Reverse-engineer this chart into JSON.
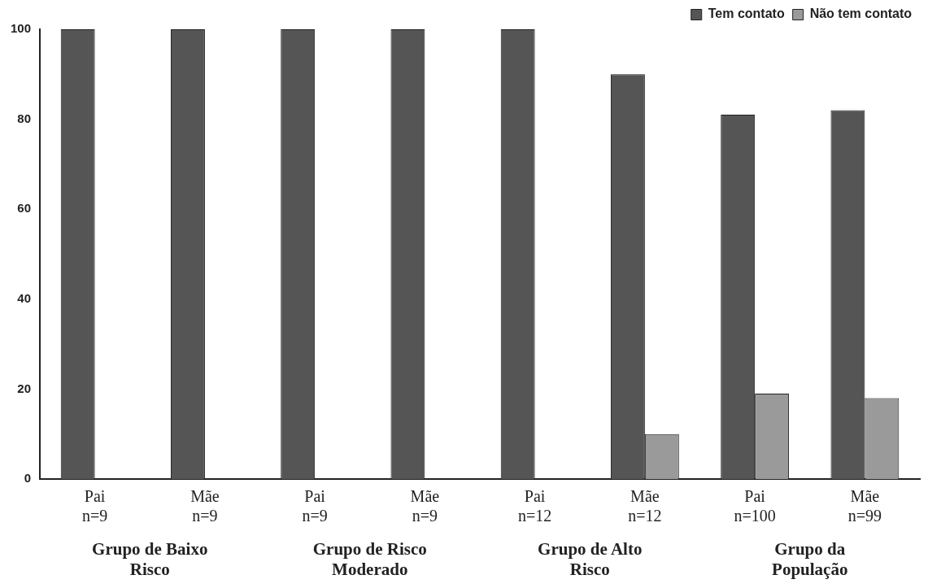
{
  "chart_data": {
    "type": "bar",
    "categories": [
      "Pai\nn=9",
      "Mãe\nn=9",
      "Pai\nn=9",
      "Mãe\nn=9",
      "Pai\nn=12",
      "Mãe\nn=12",
      "Pai\nn=100",
      "Mãe\nn=99"
    ],
    "series": [
      {
        "name": "Tem contato",
        "color": "#555555",
        "values": [
          100,
          100,
          100,
          100,
          100,
          90,
          81,
          82
        ]
      },
      {
        "name": "Não tem contato",
        "color": "#9a9a9a",
        "values": [
          0,
          0,
          0,
          0,
          0,
          10,
          19,
          18
        ]
      }
    ],
    "ylim": [
      0,
      100
    ],
    "yticks": [
      0,
      20,
      40,
      60,
      80,
      100
    ],
    "grid": false,
    "legend": "top right",
    "annotations": [
      "Grupo de Baixo Risco",
      "Grupo de Risco Moderado",
      "Grupo de Alto Risco",
      "Grupo da População"
    ]
  }
}
